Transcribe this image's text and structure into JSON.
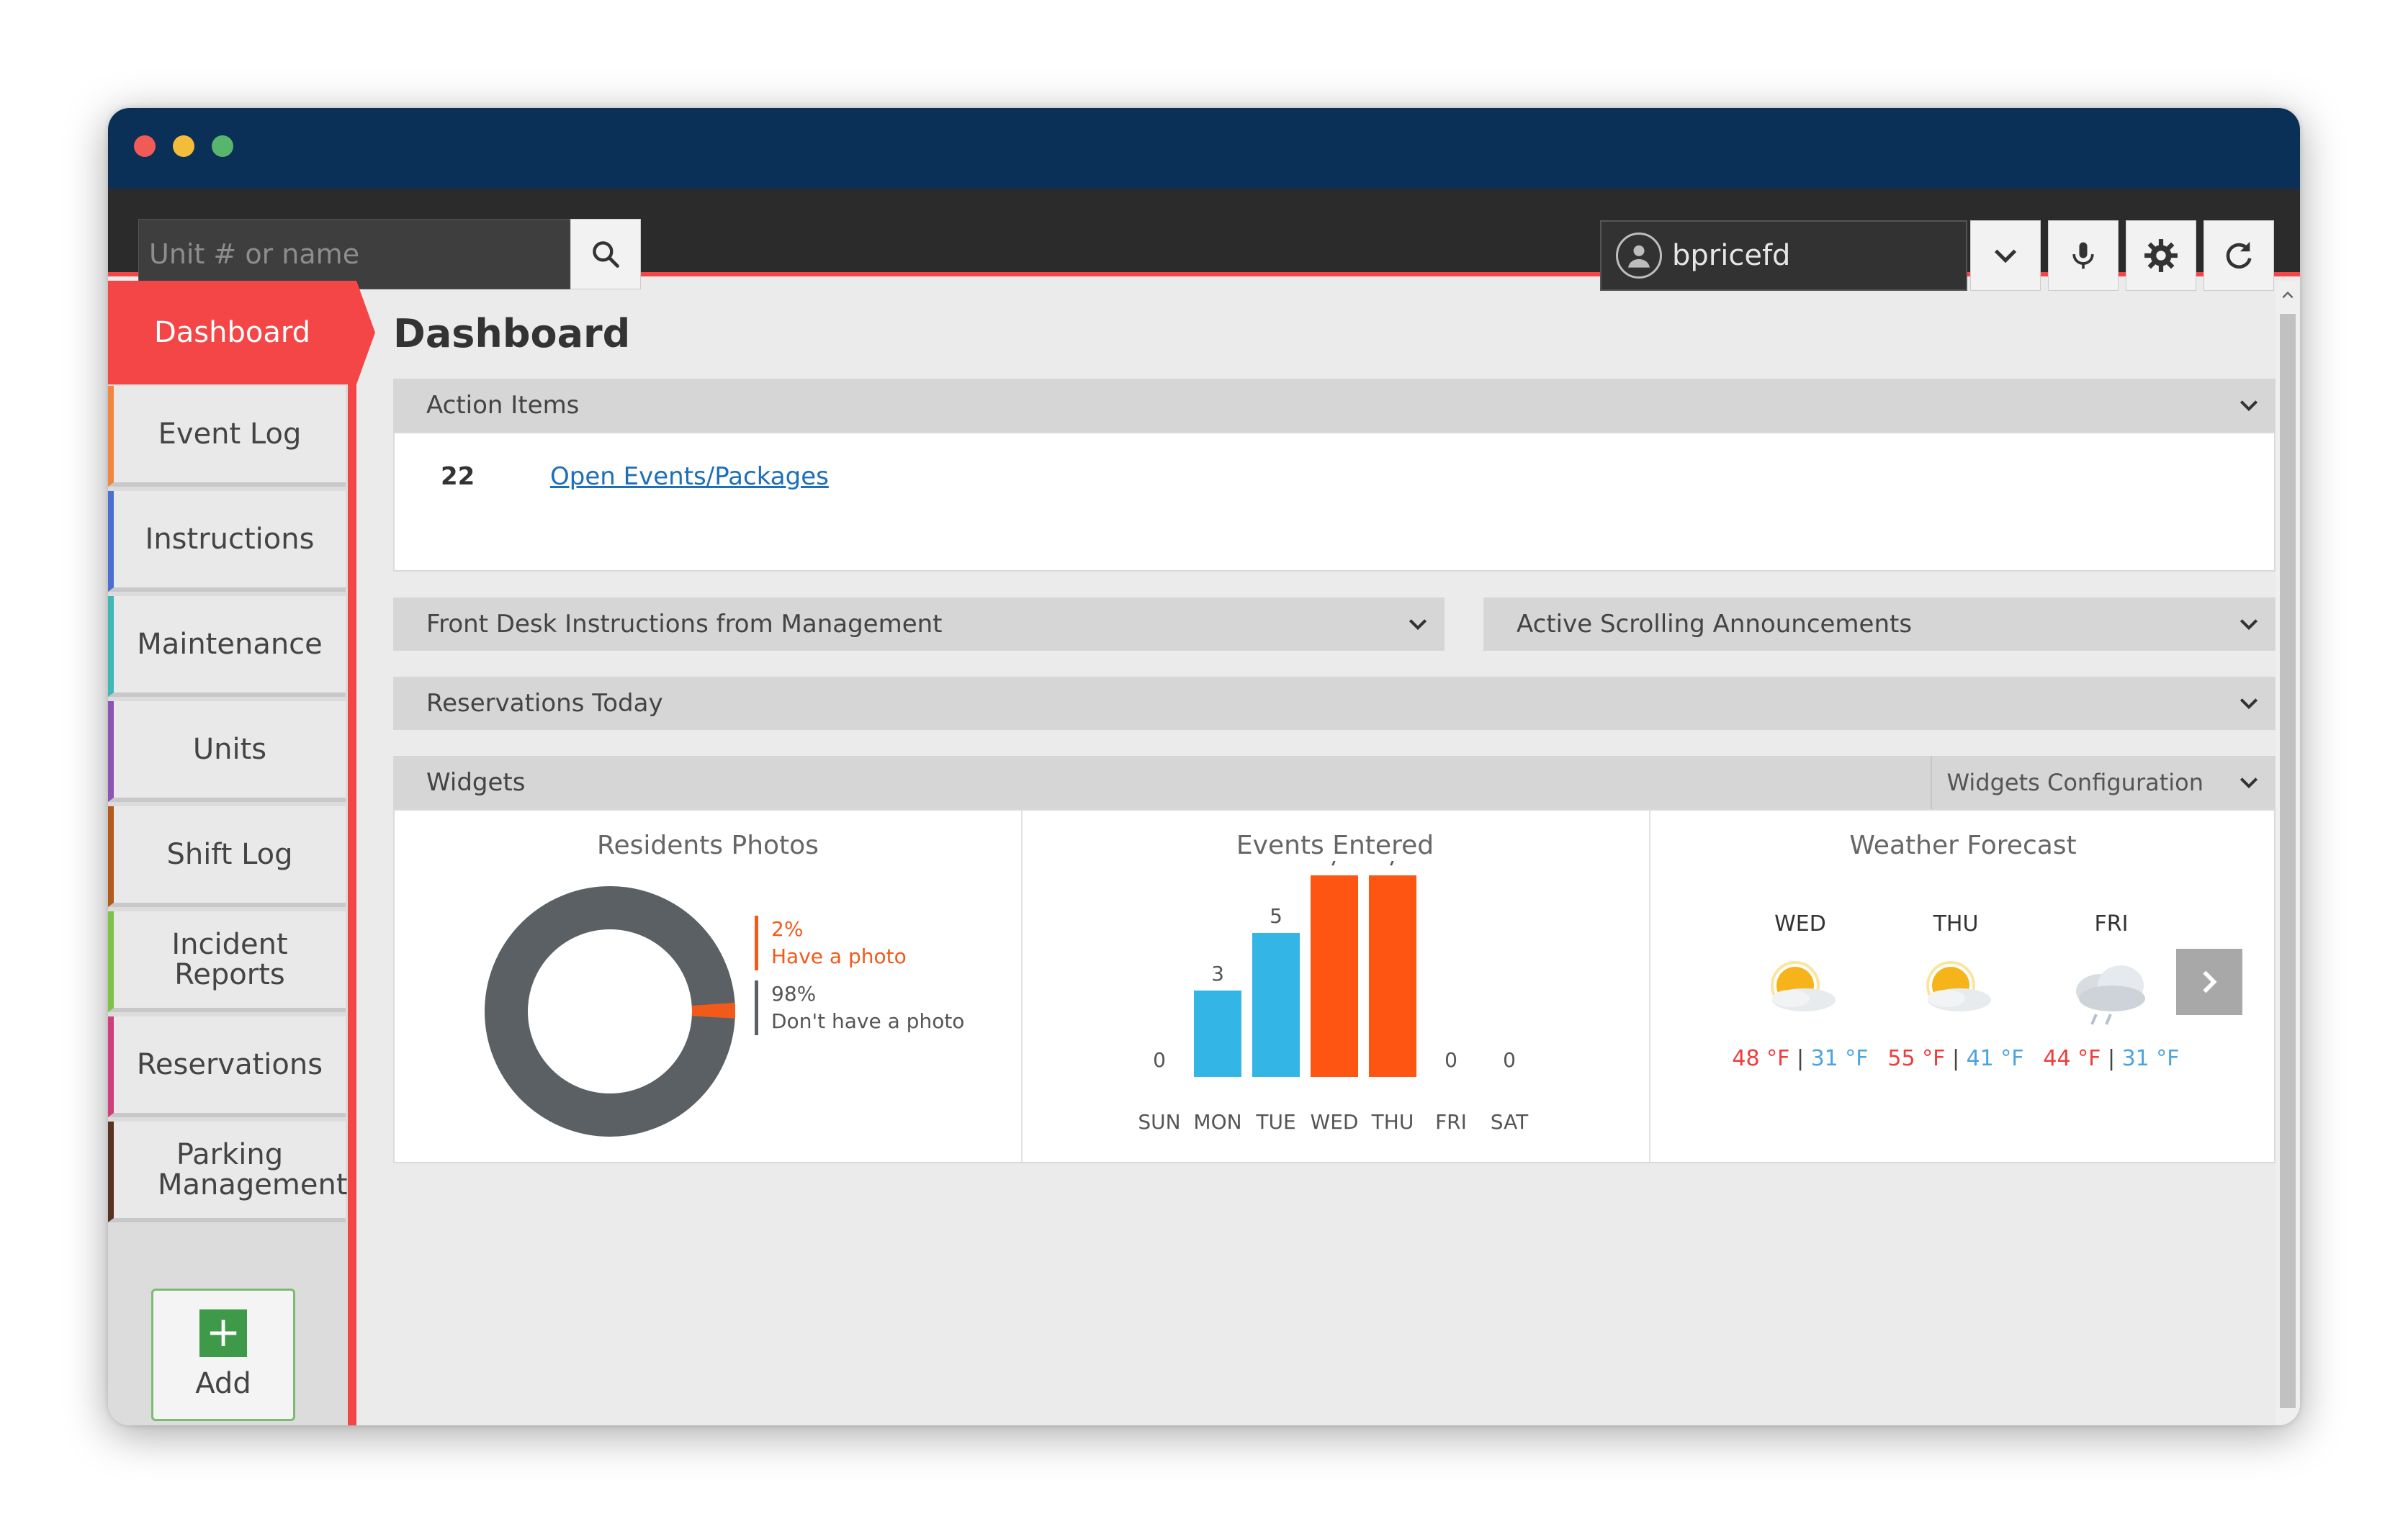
{
  "search": {
    "placeholder": "Unit # or name"
  },
  "user": {
    "name": "bpricefd"
  },
  "sidebar": {
    "active": "Dashboard",
    "items": [
      {
        "label": "Event Log",
        "color": "#f0863f"
      },
      {
        "label": "Instructions",
        "color": "#4b6fd1"
      },
      {
        "label": "Maintenance",
        "color": "#3fb8b7"
      },
      {
        "label": "Units",
        "color": "#8e53b5"
      },
      {
        "label": "Shift Log",
        "color": "#b35a1c"
      },
      {
        "label": "Incident Reports",
        "color": "#7dc24a"
      },
      {
        "label": "Reservations",
        "color": "#cf3f7d"
      },
      {
        "label": "Parking Management",
        "color": "#5a3222"
      }
    ],
    "add_label": "Add"
  },
  "main": {
    "title": "Dashboard",
    "action_items": {
      "header": "Action Items",
      "count": "22",
      "link": "Open Events/Packages"
    },
    "front_desk": {
      "header": "Front Desk Instructions from Management"
    },
    "announcements": {
      "header": "Active Scrolling Announcements"
    },
    "reservations": {
      "header": "Reservations Today"
    },
    "widgets": {
      "header": "Widgets",
      "config_label": "Widgets Configuration",
      "residents": {
        "title": "Residents Photos",
        "have_pct": "2%",
        "have_label": "Have a photo",
        "havenot_pct": "98%",
        "havenot_label": "Don't have a photo",
        "have_color": "#f25a1a",
        "havenot_color": "#5a6063"
      },
      "events": {
        "title": "Events Entered"
      },
      "weather": {
        "title": "Weather Forecast",
        "days": [
          {
            "day": "WED",
            "high": "48 °F",
            "low": "31 °F",
            "icon": "sun-cloud-icon"
          },
          {
            "day": "THU",
            "high": "55 °F",
            "low": "41 °F",
            "icon": "sun-cloud-icon"
          },
          {
            "day": "FRI",
            "high": "44 °F",
            "low": "31 °F",
            "icon": "rain-cloud-icon"
          }
        ],
        "sep": "|"
      }
    }
  },
  "chart_data": {
    "type": "bar",
    "title": "Events Entered",
    "categories": [
      "SUN",
      "MON",
      "TUE",
      "WED",
      "THU",
      "FRI",
      "SAT"
    ],
    "values": [
      0,
      3,
      5,
      7,
      7,
      0,
      0
    ],
    "colors": [
      "#33b5e5",
      "#33b5e5",
      "#33b5e5",
      "#ff5513",
      "#ff5513",
      "#33b5e5",
      "#33b5e5"
    ],
    "ylim": [
      0,
      7
    ],
    "grid": false
  }
}
